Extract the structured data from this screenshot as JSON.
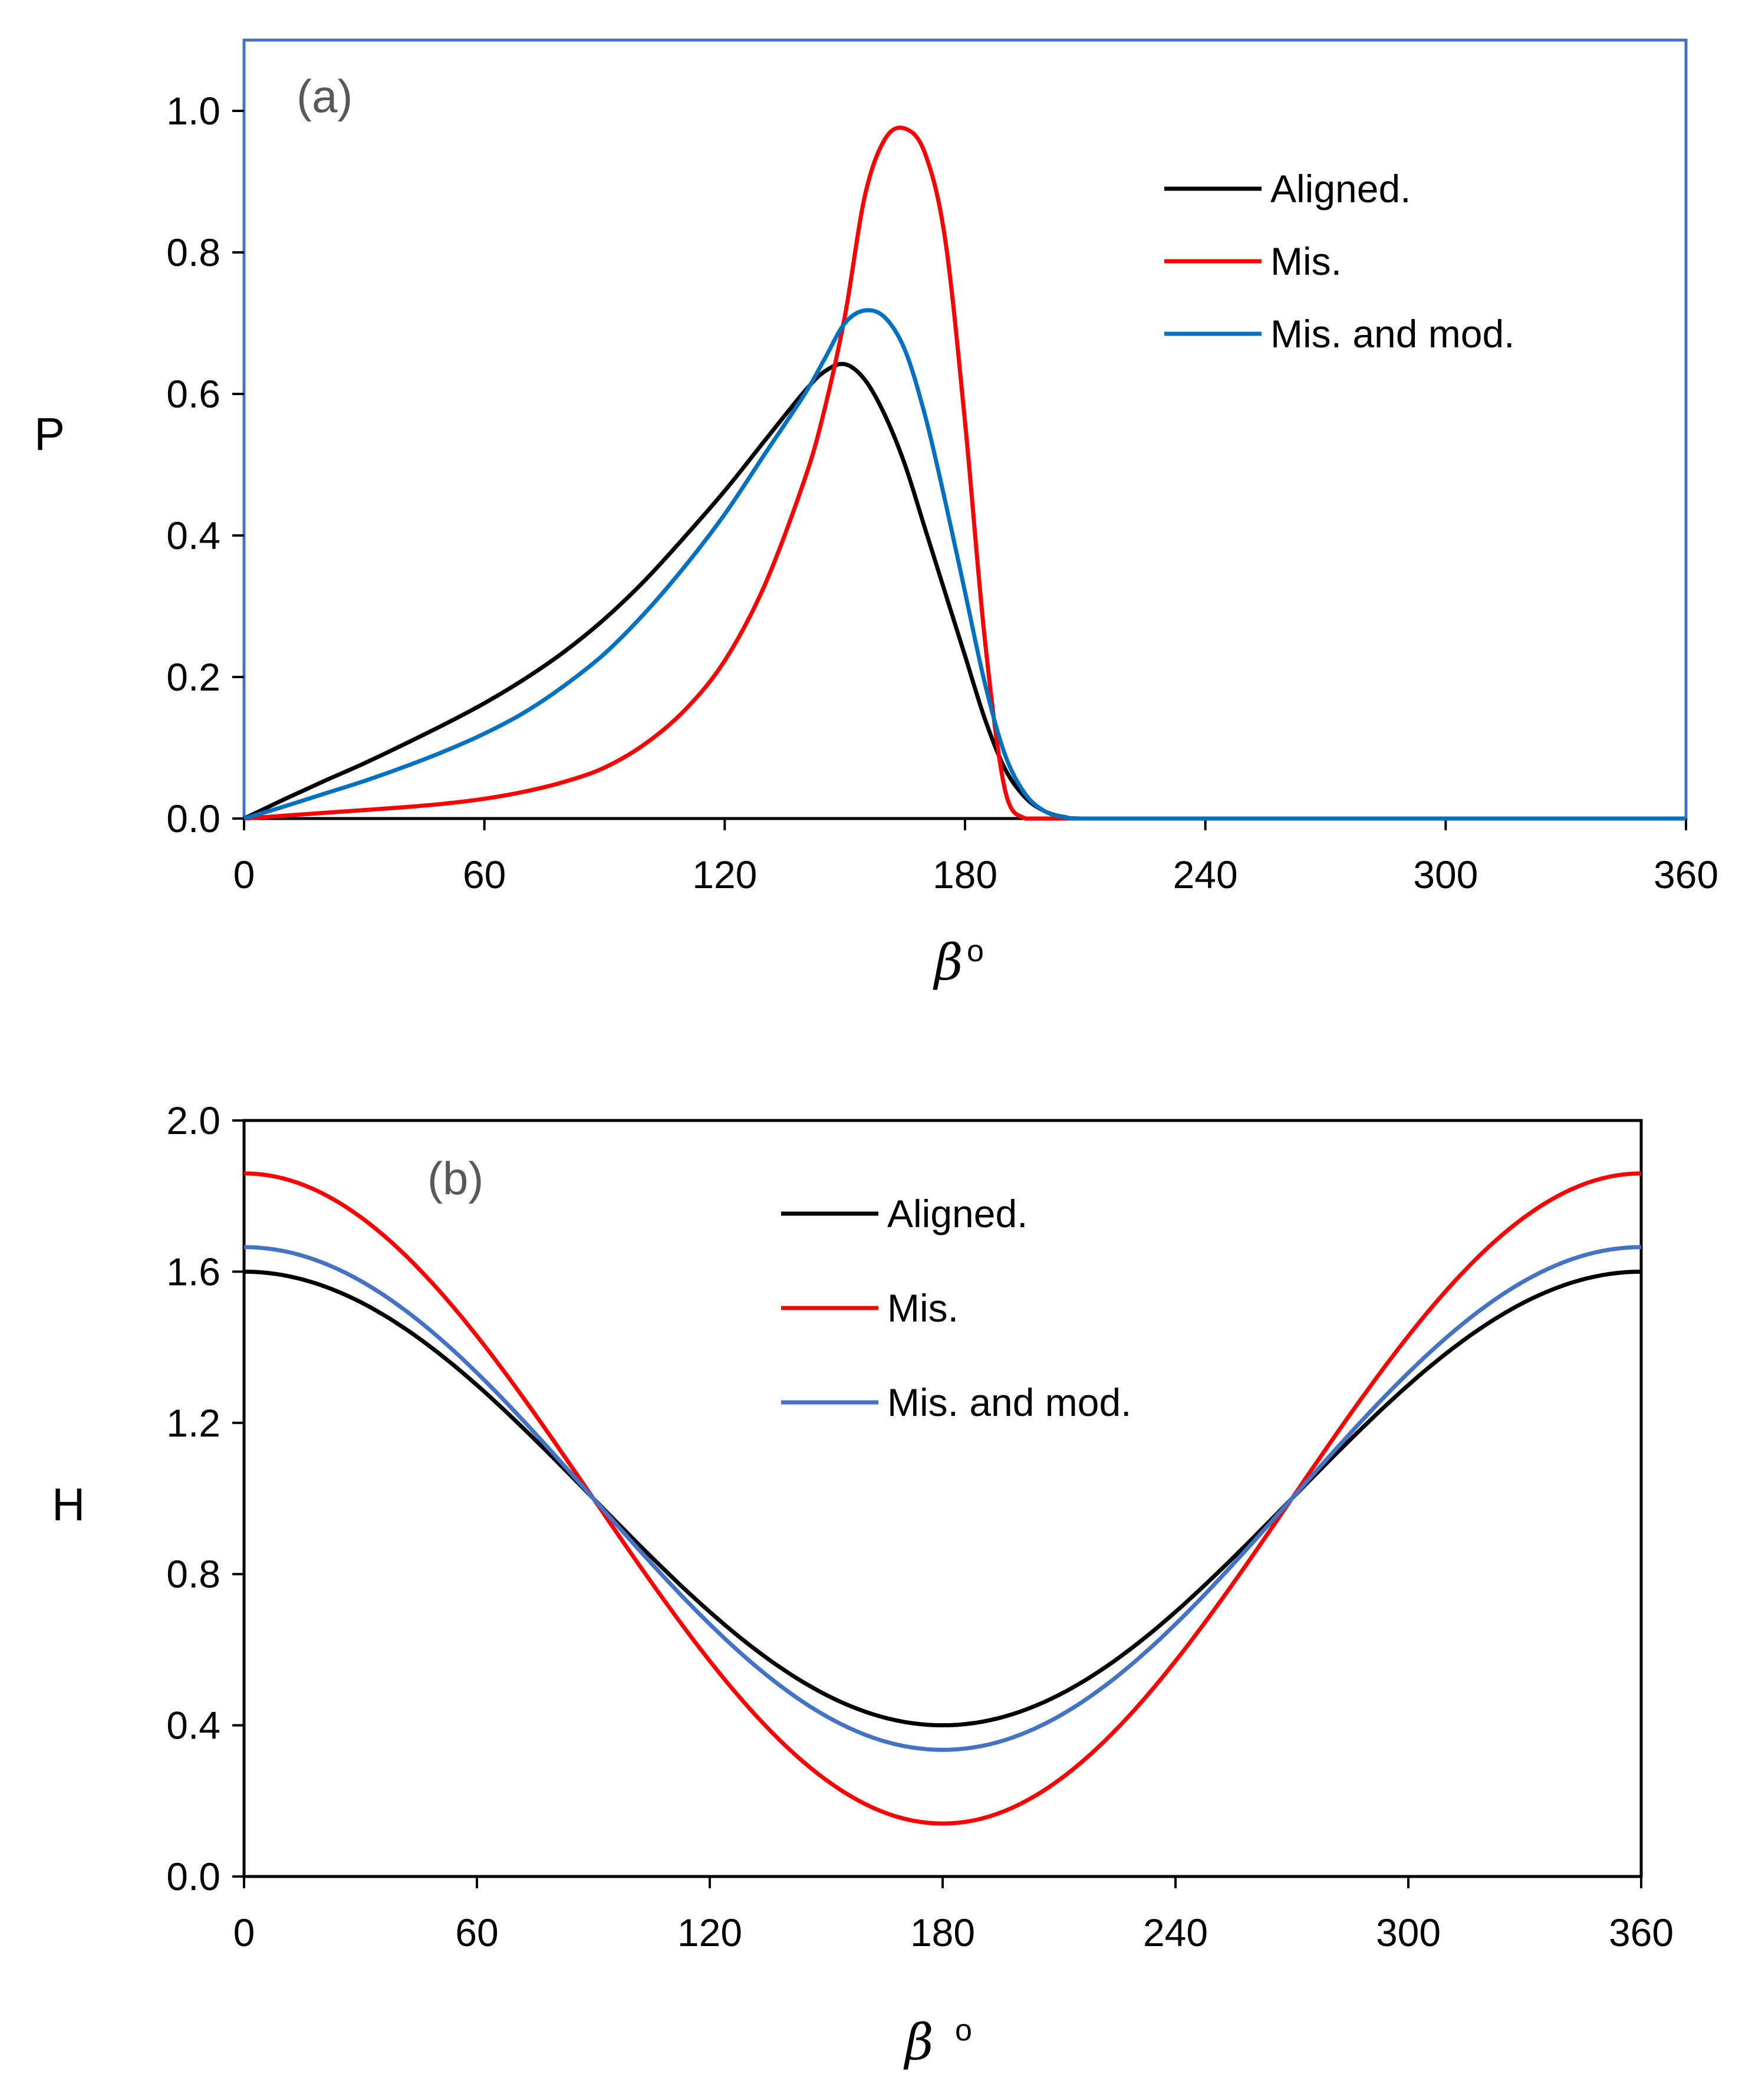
{
  "chart_data": [
    {
      "type": "line",
      "panel_label": "(a)",
      "title": "",
      "xlabel": "β",
      "xlabel_suffix": "o",
      "ylabel": "P",
      "xlim": [
        0,
        360
      ],
      "ylim": [
        0,
        1.1
      ],
      "xticks": [
        0,
        60,
        120,
        180,
        240,
        300,
        360
      ],
      "xtick_labels": [
        "0",
        "60",
        "120",
        "180",
        "240",
        "300",
        "360"
      ],
      "yticks": [
        0,
        0.2,
        0.4,
        0.6,
        0.8,
        1.0
      ],
      "ytick_labels": [
        "0.0",
        "0.2",
        "0.4",
        "0.6",
        "0.8",
        "1.0"
      ],
      "grid": false,
      "frame_color": "#4472C4",
      "legend_position": "top-right",
      "x": [
        0,
        10,
        20,
        30,
        40,
        50,
        60,
        70,
        80,
        90,
        100,
        110,
        120,
        130,
        140,
        145,
        150,
        155,
        160,
        165,
        170,
        175,
        180,
        185,
        190,
        195,
        200,
        205,
        210,
        240,
        300,
        360
      ],
      "series": [
        {
          "name": "Aligned.",
          "color": "#000000",
          "values": [
            0,
            0.027,
            0.053,
            0.078,
            0.105,
            0.133,
            0.163,
            0.197,
            0.236,
            0.282,
            0.336,
            0.398,
            0.463,
            0.534,
            0.604,
            0.632,
            0.642,
            0.62,
            0.57,
            0.5,
            0.41,
            0.32,
            0.23,
            0.14,
            0.07,
            0.03,
            0.01,
            0.002,
            0,
            0,
            0,
            0
          ]
        },
        {
          "name": "Mis.",
          "color": "#FF0000",
          "values": [
            0,
            0.004,
            0.008,
            0.012,
            0.016,
            0.021,
            0.028,
            0.038,
            0.052,
            0.072,
            0.105,
            0.153,
            0.223,
            0.33,
            0.48,
            0.58,
            0.71,
            0.88,
            0.96,
            0.975,
            0.94,
            0.82,
            0.56,
            0.25,
            0.04,
            0,
            0,
            0,
            0,
            0,
            0,
            0
          ]
        },
        {
          "name": "Mis. and mod.",
          "color": "#0070C0",
          "values": [
            0,
            0.017,
            0.035,
            0.053,
            0.073,
            0.095,
            0.12,
            0.15,
            0.188,
            0.233,
            0.29,
            0.356,
            0.43,
            0.515,
            0.6,
            0.65,
            0.7,
            0.718,
            0.708,
            0.662,
            0.57,
            0.45,
            0.32,
            0.19,
            0.09,
            0.035,
            0.01,
            0.002,
            0,
            0,
            0,
            0
          ]
        }
      ]
    },
    {
      "type": "line",
      "panel_label": "(b)",
      "title": "",
      "xlabel": "β",
      "xlabel_suffix": "o",
      "ylabel": "H",
      "xlim": [
        0,
        360
      ],
      "ylim": [
        0,
        2.0
      ],
      "xticks": [
        0,
        60,
        120,
        180,
        240,
        300,
        360
      ],
      "xtick_labels": [
        "0",
        "60",
        "120",
        "180",
        "240",
        "300",
        "360"
      ],
      "yticks": [
        0,
        0.4,
        0.8,
        1.2,
        1.6,
        2.0
      ],
      "ytick_labels": [
        "0.0",
        "0.4",
        "0.8",
        "1.2",
        "1.6",
        "2.0"
      ],
      "grid": false,
      "frame_color": "#000000",
      "legend_position": "top-center",
      "series": [
        {
          "name": "Aligned.",
          "color": "#000000",
          "formula": "1 + a*cos(beta)",
          "amplitude": 0.6
        },
        {
          "name": "Mis.",
          "color": "#FF0000",
          "formula": "1 + a*cos(beta)",
          "amplitude": 0.86
        },
        {
          "name": "Mis. and mod.",
          "color": "#4472C4",
          "formula": "1 + a*cos(beta)",
          "amplitude": 0.665
        }
      ]
    }
  ]
}
